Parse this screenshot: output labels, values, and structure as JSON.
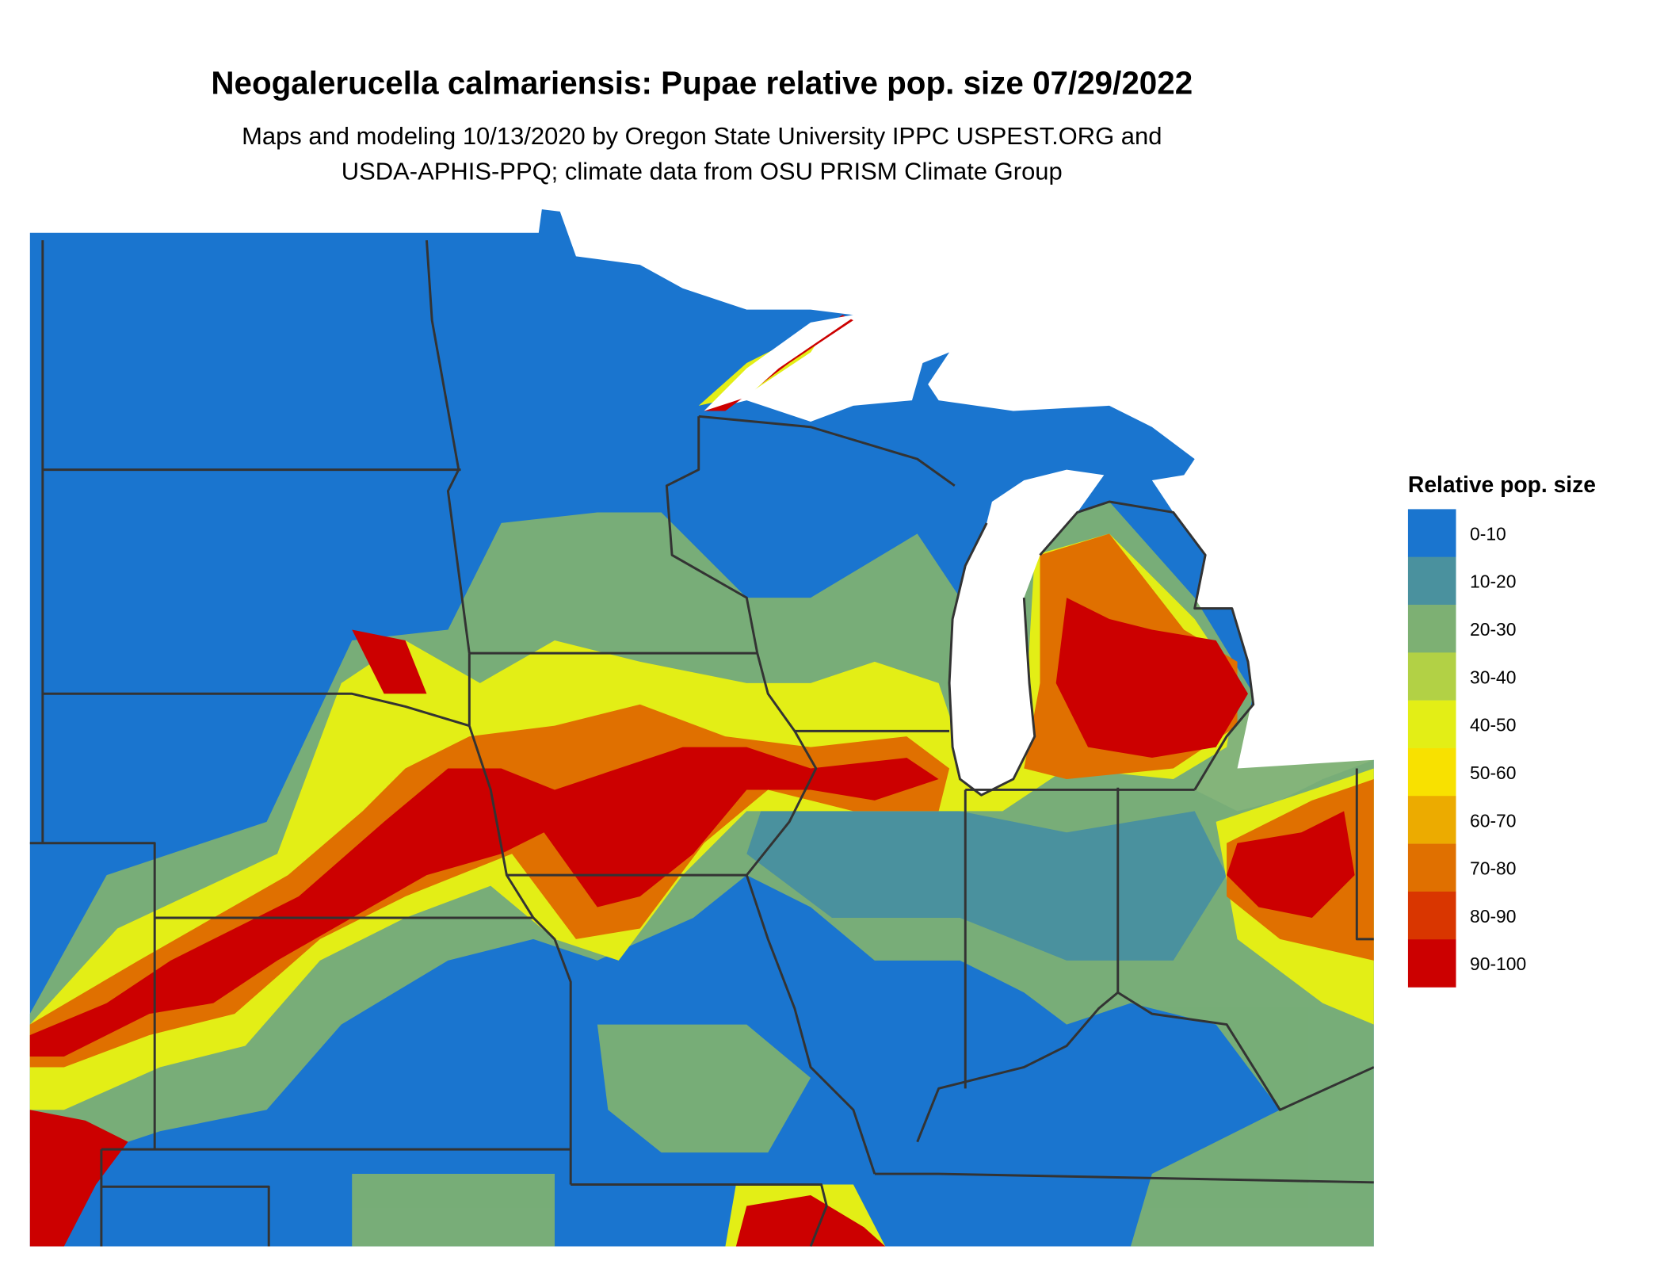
{
  "header": {
    "title": "Neogalerucella calmariensis: Pupae relative pop. size 07/29/2022",
    "subtitle_line1": "Maps and modeling 10/13/2020 by Oregon State University IPPC USPEST.ORG and",
    "subtitle_line2": "USDA-APHIS-PPQ; climate data from OSU PRISM Climate Group"
  },
  "legend": {
    "title": "Relative pop. size",
    "items": [
      {
        "label": "0-10",
        "color": "#1a75cf"
      },
      {
        "label": "10-20",
        "color": "#4a919e"
      },
      {
        "label": "20-30",
        "color": "#7db073"
      },
      {
        "label": "30-40",
        "color": "#b2d145"
      },
      {
        "label": "40-50",
        "color": "#e3ee16"
      },
      {
        "label": "50-60",
        "color": "#f8e100"
      },
      {
        "label": "60-70",
        "color": "#ecab00"
      },
      {
        "label": "70-80",
        "color": "#e07000"
      },
      {
        "label": "80-90",
        "color": "#d93600"
      },
      {
        "label": "90-100",
        "color": "#cc0000"
      }
    ]
  },
  "map": {
    "background_color": "#ffffff",
    "water_color": "#ffffff",
    "border_color": "#333333"
  }
}
